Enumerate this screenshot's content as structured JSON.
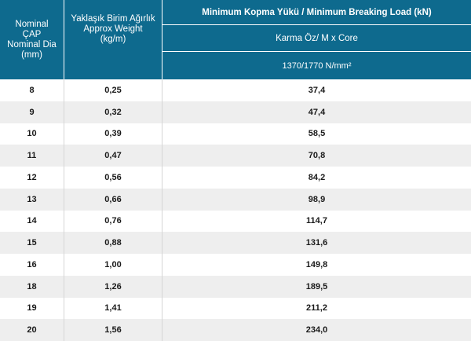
{
  "header": {
    "dia": "Nominal\nÇAP\nNominal Dia\n(mm)",
    "weight": "Yaklaşık Birim Ağırlık\nApprox Weight\n(kg/m)",
    "load_title": "Minimum Kopma Yükü / Minimum Breaking Load (kN)",
    "core": "Karma Öz/ M  x Core",
    "grade": "1370/1770 N/mm²"
  },
  "rows": [
    {
      "dia": "8",
      "weight": "0,25",
      "load": "37,4"
    },
    {
      "dia": "9",
      "weight": "0,32",
      "load": "47,4"
    },
    {
      "dia": "10",
      "weight": "0,39",
      "load": "58,5"
    },
    {
      "dia": "11",
      "weight": "0,47",
      "load": "70,8"
    },
    {
      "dia": "12",
      "weight": "0,56",
      "load": "84,2"
    },
    {
      "dia": "13",
      "weight": "0,66",
      "load": "98,9"
    },
    {
      "dia": "14",
      "weight": "0,76",
      "load": "114,7"
    },
    {
      "dia": "15",
      "weight": "0,88",
      "load": "131,6"
    },
    {
      "dia": "16",
      "weight": "1,00",
      "load": "149,8"
    },
    {
      "dia": "18",
      "weight": "1,26",
      "load": "189,5"
    },
    {
      "dia": "19",
      "weight": "1,41",
      "load": "211,2"
    },
    {
      "dia": "20",
      "weight": "1,56",
      "load": "234,0"
    }
  ],
  "colors": {
    "header_bg": "#0e6a8e",
    "stripe": "#eeeeee"
  }
}
